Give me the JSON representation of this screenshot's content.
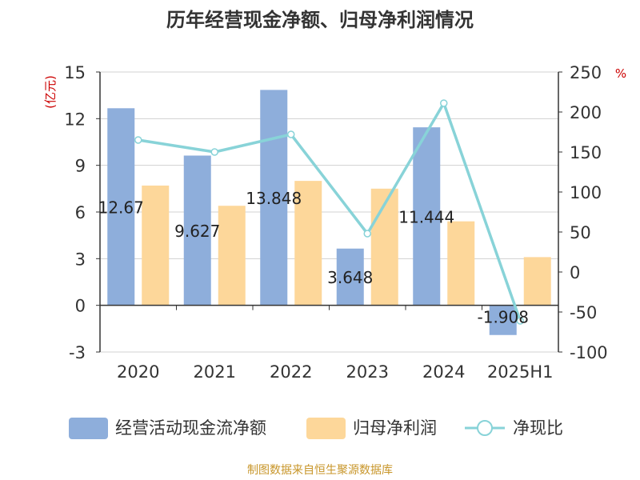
{
  "chart_data": {
    "type": "bar",
    "title": "历年经营现金净额、归母净利润情况",
    "categories": [
      "2020",
      "2021",
      "2022",
      "2023",
      "2024",
      "2025H1"
    ],
    "left_axis": {
      "unit_label": "(亿元)",
      "ylim": [
        -3,
        15
      ],
      "ticks": [
        "15",
        "12",
        "9",
        "6",
        "3",
        "0",
        "-3"
      ]
    },
    "right_axis": {
      "unit_label": "%",
      "ylim": [
        -100,
        250
      ],
      "ticks": [
        "250",
        "200",
        "150",
        "100",
        "50",
        "0",
        "-50",
        "-100"
      ]
    },
    "series": [
      {
        "name": "经营活动现金流净额",
        "type": "bar",
        "axis": "left",
        "color": "#8eaedb",
        "values": [
          12.67,
          9.627,
          13.848,
          3.648,
          11.444,
          -1.908
        ],
        "labels": [
          "12.67",
          "9.627",
          "13.848",
          "3.648",
          "11.444",
          "-1.908"
        ]
      },
      {
        "name": "归母净利润",
        "type": "bar",
        "axis": "left",
        "color": "#fdd79a",
        "values": [
          7.7,
          6.4,
          8.0,
          7.5,
          5.4,
          3.1
        ]
      },
      {
        "name": "净现比",
        "type": "line",
        "axis": "right",
        "color": "#88d3d8",
        "values": [
          165,
          150,
          172,
          48,
          211,
          -61
        ]
      }
    ],
    "grid": true,
    "legend": "bottom",
    "source": "制图数据来自恒生聚源数据库",
    "colors": {
      "title": "#333333",
      "unit": "#cc0000",
      "source": "#c8962a"
    }
  }
}
